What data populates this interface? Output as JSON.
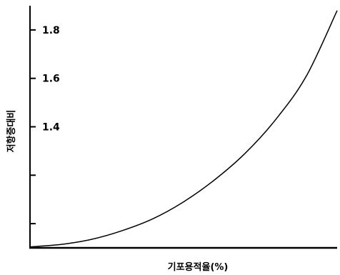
{
  "chart_data": {
    "type": "line",
    "title": "",
    "xlabel": "기포용적율(%)",
    "ylabel": "저항증대비",
    "y_ticks": [
      {
        "value": 1.0,
        "label": ""
      },
      {
        "value": 1.2,
        "label": ""
      },
      {
        "value": 1.4,
        "label": "1.4"
      },
      {
        "value": 1.6,
        "label": "1.6"
      },
      {
        "value": 1.8,
        "label": "1.8"
      }
    ],
    "ylim": [
      0.9,
      1.9
    ],
    "xlim": [
      0,
      1
    ],
    "grid": false,
    "legend": "none",
    "series": [
      {
        "x": [
          0.0,
          0.1,
          0.2,
          0.3,
          0.4,
          0.5,
          0.6,
          0.7,
          0.8,
          0.9,
          1.0
        ],
        "y": [
          0.904,
          0.914,
          0.935,
          0.971,
          1.02,
          1.09,
          1.18,
          1.29,
          1.43,
          1.61,
          1.88
        ]
      }
    ]
  }
}
